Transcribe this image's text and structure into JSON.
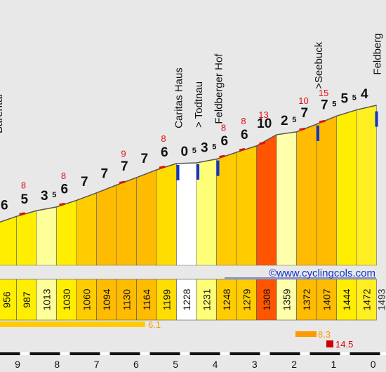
{
  "chart_data": {
    "type": "area",
    "title": "",
    "xlabel": "",
    "ylabel": "",
    "x_axis_direction": "km to summit (descending)",
    "x_ticks": [
      "9",
      "8",
      "7",
      "6",
      "5",
      "4",
      "3",
      "2",
      "1",
      "0"
    ],
    "segments": [
      {
        "grade": "6",
        "grade_sup": "",
        "elev_start": 956,
        "color": "#ffee00"
      },
      {
        "grade": "5",
        "grade_sup": "",
        "elev_start": 987,
        "color": "#ffee00"
      },
      {
        "grade": "3",
        "grade_sup": "5",
        "elev_start": 1013,
        "color": "#ffff99"
      },
      {
        "grade": "6",
        "grade_sup": "",
        "elev_start": 1030,
        "color": "#ffee00"
      },
      {
        "grade": "7",
        "grade_sup": "",
        "elev_start": 1060,
        "color": "#ffcc00"
      },
      {
        "grade": "7",
        "grade_sup": "",
        "elev_start": 1094,
        "color": "#ffbb00"
      },
      {
        "grade": "7",
        "grade_sup": "",
        "elev_start": 1130,
        "color": "#ffbb00"
      },
      {
        "grade": "7",
        "grade_sup": "",
        "elev_start": 1164,
        "color": "#ffbb00"
      },
      {
        "grade": "6",
        "grade_sup": "",
        "elev_start": 1199,
        "color": "#ffdd00"
      },
      {
        "grade": "0",
        "grade_sup": "5",
        "elev_start": 1228,
        "color": "#ffffff"
      },
      {
        "grade": "3",
        "grade_sup": "5",
        "elev_start": 1231,
        "color": "#ffff77"
      },
      {
        "grade": "6",
        "grade_sup": "",
        "elev_start": 1248,
        "color": "#ffcc00"
      },
      {
        "grade": "6",
        "grade_sup": "",
        "elev_start": 1279,
        "color": "#ffcc00"
      },
      {
        "grade": "10",
        "grade_sup": "",
        "elev_start": 1308,
        "color": "#ff5500"
      },
      {
        "grade": "2",
        "grade_sup": "5",
        "elev_start": 1359,
        "color": "#ffffaa"
      },
      {
        "grade": "7",
        "grade_sup": "",
        "elev_start": 1372,
        "color": "#ffbb00"
      },
      {
        "grade": "7",
        "grade_sup": "5",
        "elev_start": 1407,
        "color": "#ffbb00"
      },
      {
        "grade": "5",
        "grade_sup": "5",
        "elev_start": 1444,
        "color": "#ffee00"
      },
      {
        "grade": "4",
        "grade_sup": "",
        "elev_start": 1472,
        "color": "#ffee22"
      }
    ],
    "summit_elevation": "1493",
    "max_grades": [
      {
        "label": "8",
        "after_segment": 1
      },
      {
        "label": "8",
        "after_segment": 3
      },
      {
        "label": "9",
        "after_segment": 6
      },
      {
        "label": "8",
        "after_segment": 8
      },
      {
        "label": "8",
        "after_segment": 11
      },
      {
        "label": "8",
        "after_segment": 12
      },
      {
        "label": "13",
        "after_segment": 13
      },
      {
        "label": "10",
        "after_segment": 15
      },
      {
        "label": "15",
        "after_segment": 16
      }
    ],
    "places": [
      {
        "name": "Bärental",
        "segment": 0
      },
      {
        "name": "Caritas Haus",
        "segment": 9
      },
      {
        "name": "> Todtnau",
        "segment": 10
      },
      {
        "name": "Feldberger Hof",
        "segment": 11
      },
      {
        "name": ">Seebuck",
        "segment": 16
      },
      {
        "name": "Feldberg",
        "segment": 18
      }
    ],
    "grade_bars": [
      {
        "value": "6.1",
        "color": "#ffcc00"
      },
      {
        "value": "8.3",
        "color": "#ff9900"
      },
      {
        "value": "14.5",
        "color": "#cc0000"
      }
    ],
    "watermark": "©www.cyclingcols.com"
  }
}
